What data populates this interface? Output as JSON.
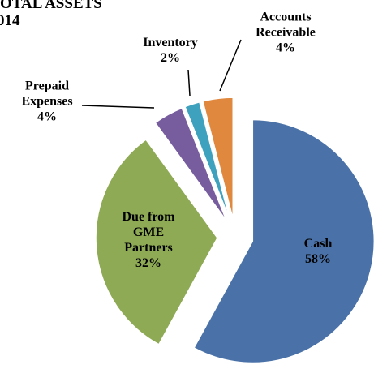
{
  "chart_data": {
    "type": "pie",
    "title": [
      "OTAL ASSETS",
      "014"
    ],
    "categories": [
      "Cash",
      "Due from GME Partners",
      "Prepaid Expenses",
      "Inventory",
      "Accounts Receivable"
    ],
    "values": [
      58,
      32,
      4,
      2,
      4
    ],
    "value_labels": [
      "58%",
      "32%",
      "4%",
      "2%",
      "4%"
    ],
    "colors": [
      "#4a72a8",
      "#8eaa55",
      "#775d9e",
      "#3ea2bf",
      "#e0883e"
    ]
  }
}
